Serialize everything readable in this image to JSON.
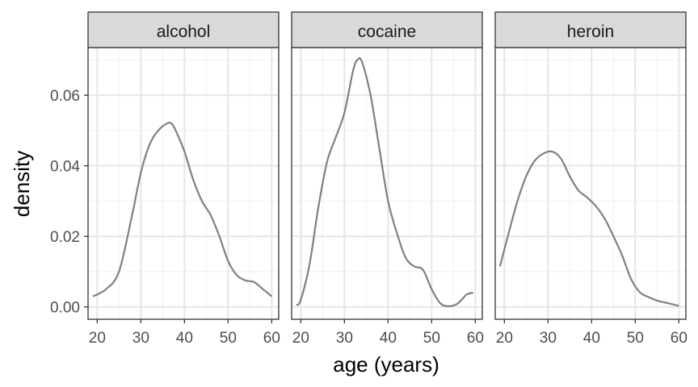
{
  "chart_data": {
    "type": "line",
    "chart_kind": "faceted density plot",
    "title": "",
    "xlabel": "age (years)",
    "ylabel": "density",
    "xlim": [
      17.9,
      61.6
    ],
    "ylim": [
      -0.0035,
      0.0735
    ],
    "x_ticks": [
      20,
      30,
      40,
      50,
      60
    ],
    "x_tick_labels": [
      "20",
      "30",
      "40",
      "50",
      "60"
    ],
    "y_ticks": [
      0,
      0.02,
      0.04,
      0.06
    ],
    "y_tick_labels": [
      "0.00",
      "0.02",
      "0.04",
      "0.06"
    ],
    "grid": true,
    "line_color": "#808080",
    "strip_fill": "#d9d9d9",
    "facets": [
      {
        "label": "alcohol",
        "x": [
          19,
          22,
          25,
          28,
          30,
          32,
          34,
          36,
          37,
          38,
          40,
          42,
          44,
          46,
          48,
          50,
          52,
          54,
          56,
          58,
          60
        ],
        "y": [
          0.003,
          0.005,
          0.01,
          0.026,
          0.038,
          0.046,
          0.05,
          0.052,
          0.052,
          0.05,
          0.044,
          0.036,
          0.03,
          0.026,
          0.02,
          0.013,
          0.009,
          0.0075,
          0.007,
          0.005,
          0.003
        ]
      },
      {
        "label": "cocaine",
        "x": [
          19,
          20,
          22,
          24,
          26,
          28,
          30,
          32,
          33,
          34,
          36,
          38,
          40,
          42,
          44,
          46,
          48,
          50,
          52,
          54,
          56,
          58,
          59.5
        ],
        "y": [
          0.0005,
          0.002,
          0.012,
          0.028,
          0.041,
          0.048,
          0.055,
          0.067,
          0.07,
          0.0695,
          0.06,
          0.045,
          0.03,
          0.021,
          0.014,
          0.0115,
          0.0105,
          0.005,
          0.001,
          0.0002,
          0.001,
          0.0035,
          0.004
        ]
      },
      {
        "label": "heroin",
        "x": [
          19,
          21,
          23,
          25,
          27,
          29,
          31,
          33,
          35,
          37,
          39,
          41,
          43,
          45,
          47,
          49,
          51,
          53,
          55,
          57,
          59,
          60
        ],
        "y": [
          0.0115,
          0.021,
          0.03,
          0.037,
          0.0415,
          0.0435,
          0.044,
          0.042,
          0.037,
          0.033,
          0.031,
          0.0285,
          0.025,
          0.02,
          0.0145,
          0.008,
          0.0042,
          0.0028,
          0.0018,
          0.0012,
          0.0006,
          0.0003
        ]
      }
    ]
  }
}
